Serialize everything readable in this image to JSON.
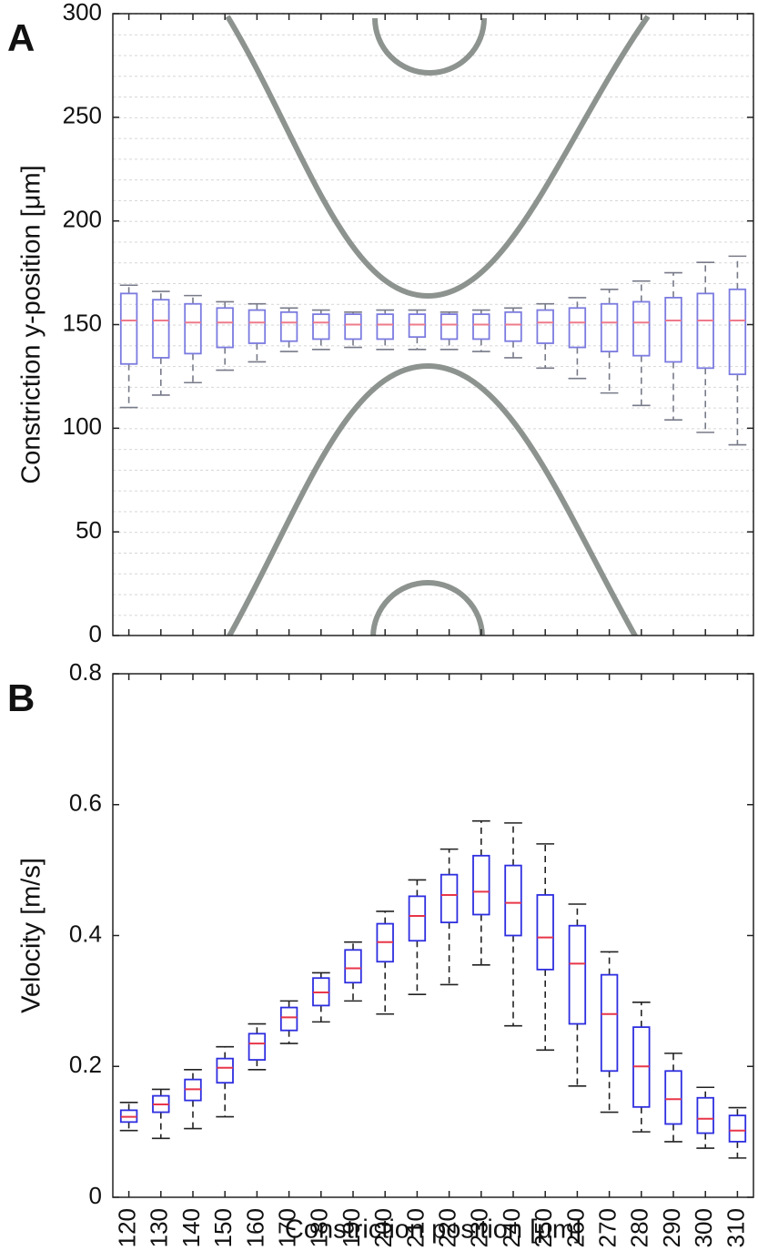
{
  "chart_data": [
    {
      "type": "box",
      "panel_label": "A",
      "y_label": "Constriction y-position [μm]",
      "categories": [
        null,
        null,
        null,
        null,
        null,
        null,
        null,
        null,
        null,
        null,
        null,
        null,
        null,
        null,
        null,
        null,
        null,
        null,
        null,
        null
      ],
      "median": [
        152,
        152,
        151,
        151,
        151,
        151,
        151,
        150,
        150,
        150,
        150,
        150,
        150,
        151,
        151,
        151,
        151,
        152,
        152,
        152
      ],
      "q1": [
        131,
        134,
        136,
        139,
        141,
        142,
        143,
        143,
        143,
        144,
        143,
        143,
        142,
        141,
        139,
        137,
        135,
        132,
        129,
        126
      ],
      "q3": [
        165,
        162,
        160,
        158,
        157,
        156,
        155,
        155,
        155,
        155,
        155,
        155,
        156,
        157,
        158,
        160,
        161,
        163,
        165,
        167
      ],
      "whisker_low": [
        110,
        116,
        122,
        128,
        132,
        137,
        138,
        139,
        138,
        138,
        138,
        137,
        134,
        129,
        124,
        117,
        111,
        104,
        98,
        92
      ],
      "whisker_high": [
        169,
        166,
        164,
        161,
        160,
        158,
        157,
        156,
        157,
        157,
        156,
        157,
        158,
        160,
        163,
        167,
        171,
        175,
        180,
        183
      ],
      "box_color": "#7b7be0",
      "median_color": "#ee7b8c",
      "whisker_color": "#777a88",
      "ylim": [
        0,
        300
      ],
      "yticks": [
        0,
        50,
        100,
        150,
        200,
        250,
        300
      ]
    },
    {
      "type": "box",
      "panel_label": "B",
      "y_label": "Velocity [m/s]",
      "x_label": "Constriction position [μm]",
      "categories": [
        "120",
        "130",
        "140",
        "150",
        "160",
        "170",
        "180",
        "190",
        "200",
        "210",
        "220",
        "230",
        "240",
        "250",
        "260",
        "270",
        "280",
        "290",
        "300",
        "310"
      ],
      "median": [
        0.123,
        0.142,
        0.165,
        0.198,
        0.235,
        0.275,
        0.313,
        0.35,
        0.39,
        0.43,
        0.462,
        0.467,
        0.45,
        0.397,
        0.357,
        0.28,
        0.2,
        0.15,
        0.12,
        0.102
      ],
      "q1": [
        0.115,
        0.13,
        0.148,
        0.175,
        0.21,
        0.255,
        0.293,
        0.328,
        0.36,
        0.392,
        0.42,
        0.432,
        0.4,
        0.348,
        0.265,
        0.193,
        0.138,
        0.112,
        0.098,
        0.085
      ],
      "q3": [
        0.133,
        0.155,
        0.18,
        0.212,
        0.25,
        0.29,
        0.335,
        0.378,
        0.418,
        0.46,
        0.493,
        0.522,
        0.507,
        0.462,
        0.415,
        0.34,
        0.26,
        0.193,
        0.152,
        0.125
      ],
      "whisker_low": [
        0.102,
        0.09,
        0.105,
        0.123,
        0.195,
        0.235,
        0.268,
        0.3,
        0.28,
        0.31,
        0.325,
        0.355,
        0.262,
        0.225,
        0.17,
        0.13,
        0.1,
        0.085,
        0.075,
        0.06
      ],
      "whisker_high": [
        0.145,
        0.165,
        0.195,
        0.23,
        0.265,
        0.3,
        0.343,
        0.39,
        0.437,
        0.485,
        0.532,
        0.575,
        0.572,
        0.54,
        0.448,
        0.375,
        0.298,
        0.22,
        0.168,
        0.137
      ],
      "box_color": "#2e2ee0",
      "median_color": "#e8364a",
      "whisker_color": "#222222",
      "ylim": [
        0,
        0.8
      ],
      "yticks": [
        0,
        0.2,
        0.4,
        0.6,
        0.8
      ]
    }
  ]
}
